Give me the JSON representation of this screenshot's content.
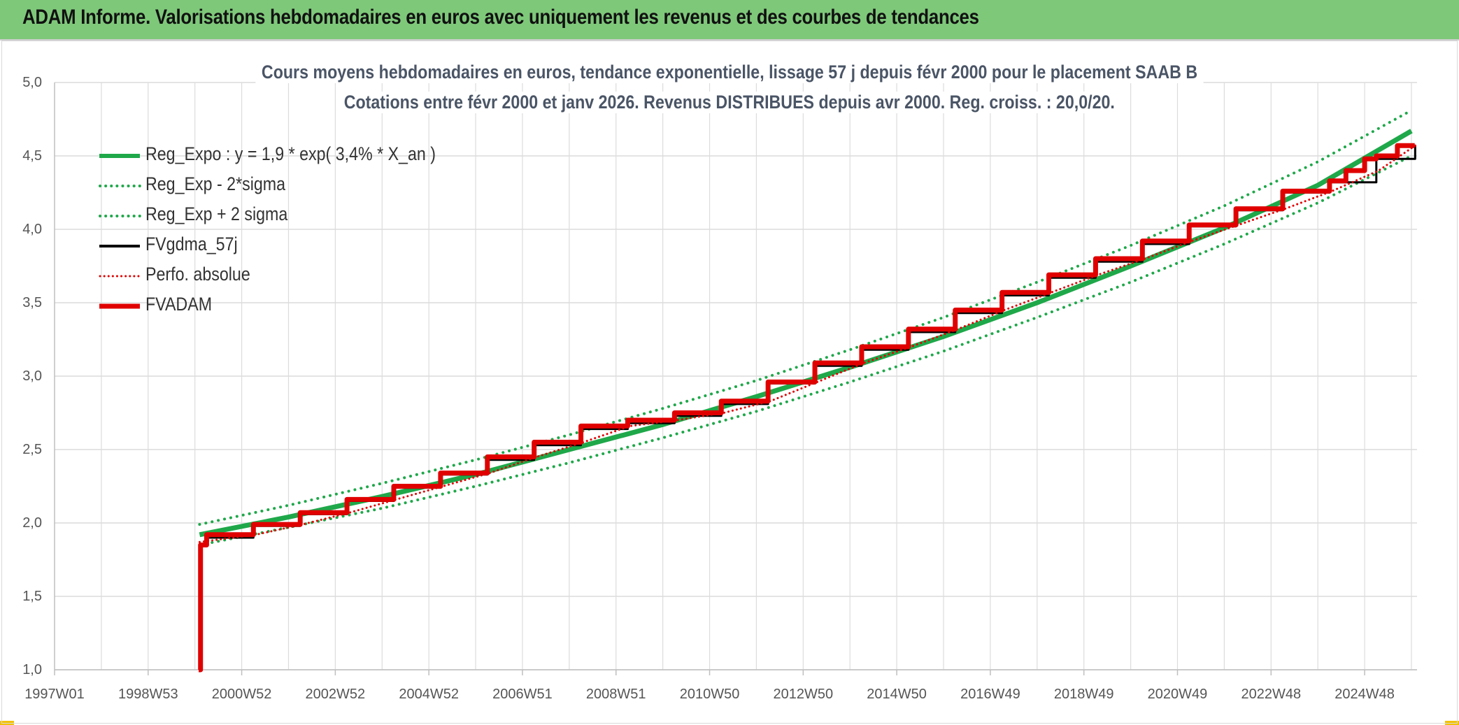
{
  "header": {
    "title": "ADAM Informe. Valorisations hebdomadaires en euros avec uniquement les revenus et des courbes de tendances"
  },
  "colors": {
    "header_bg": "#7ec87a",
    "trend": "#1fa84a",
    "band": "#1fa84a",
    "smooth": "#000000",
    "perf": "#e00000",
    "fvadam": "#e00000",
    "grid": "#dcdcdc",
    "corner": "#f2c200"
  },
  "chart_data": {
    "type": "line",
    "title": "Cours moyens hebdomadaires en euros, tendance exponentielle, lissage 57 j depuis févr 2000 pour le placement SAAB B",
    "subtitle": "Cotations entre févr 2000 et janv 2026. Revenus DISTRIBUES depuis avr 2000. Reg. croiss. : 20,0/20.",
    "xlabel": "",
    "ylabel": "",
    "ylim": [
      1.0,
      5.0
    ],
    "xlim": [
      "1997W01",
      "2026W06"
    ],
    "grid": true,
    "legend_position": "top-left",
    "y_ticks": [
      "1,0",
      "1,5",
      "2,0",
      "2,5",
      "3,0",
      "3,5",
      "4,0",
      "4,5",
      "5,0"
    ],
    "x_tick_labels": [
      "1997W01",
      "1998W53",
      "2000W52",
      "2002W52",
      "2004W52",
      "2006W51",
      "2008W51",
      "2010W50",
      "2012W50",
      "2014W50",
      "2016W49",
      "2018W49",
      "2020W49",
      "2022W48",
      "2024W48"
    ],
    "x_tick_years": [
      1997.0,
      1999.0,
      2001.0,
      2003.0,
      2005.0,
      2007.0,
      2009.0,
      2011.0,
      2013.0,
      2015.0,
      2017.0,
      2019.0,
      2021.0,
      2023.0,
      2025.0
    ],
    "series": [
      {
        "name": "Reg_Expo : y = 1,9 * exp( 3,4% *  X_an )",
        "style": "solid-thick",
        "color": "#1fa84a",
        "x": [
          2000.1,
          2002.0,
          2004.0,
          2006.0,
          2008.0,
          2010.0,
          2012.0,
          2014.0,
          2016.0,
          2018.0,
          2020.0,
          2022.0,
          2024.0,
          2026.0
        ],
        "y": [
          1.92,
          2.04,
          2.18,
          2.33,
          2.5,
          2.67,
          2.86,
          3.06,
          3.27,
          3.5,
          3.75,
          4.01,
          4.3,
          4.67
        ]
      },
      {
        "name": "Reg_Exp - 2*sigma",
        "style": "dotted",
        "color": "#1fa84a",
        "x": [
          2000.1,
          2002.0,
          2004.0,
          2006.0,
          2008.0,
          2010.0,
          2012.0,
          2014.0,
          2016.0,
          2018.0,
          2020.0,
          2022.0,
          2024.0,
          2026.0
        ],
        "y": [
          1.85,
          1.97,
          2.1,
          2.25,
          2.41,
          2.58,
          2.76,
          2.96,
          3.17,
          3.4,
          3.64,
          3.9,
          4.18,
          4.5
        ]
      },
      {
        "name": "Reg_Exp + 2 sigma",
        "style": "dotted",
        "color": "#1fa84a",
        "x": [
          2000.1,
          2002.0,
          2004.0,
          2006.0,
          2008.0,
          2010.0,
          2012.0,
          2014.0,
          2016.0,
          2018.0,
          2020.0,
          2022.0,
          2024.0,
          2026.0
        ],
        "y": [
          1.99,
          2.12,
          2.27,
          2.43,
          2.6,
          2.78,
          2.97,
          3.18,
          3.4,
          3.64,
          3.89,
          4.16,
          4.46,
          4.81
        ]
      },
      {
        "name": "FVgdma_57j",
        "style": "solid",
        "color": "#000000",
        "x": [
          2000.08,
          2000.25,
          2001.25,
          2002.25,
          2003.25,
          2004.25,
          2005.25,
          2006.25,
          2007.25,
          2008.25,
          2009.25,
          2010.25,
          2011.25,
          2012.25,
          2013.25,
          2014.25,
          2015.25,
          2016.25,
          2017.25,
          2018.25,
          2019.25,
          2020.25,
          2021.25,
          2022.25,
          2023.25,
          2024.25,
          2025.25,
          2026.08
        ],
        "y": [
          1.85,
          1.9,
          1.98,
          2.06,
          2.15,
          2.24,
          2.33,
          2.43,
          2.53,
          2.64,
          2.68,
          2.73,
          2.81,
          2.95,
          3.07,
          3.18,
          3.3,
          3.43,
          3.55,
          3.67,
          3.78,
          3.9,
          4.02,
          4.13,
          4.25,
          4.32,
          4.48,
          4.57
        ]
      },
      {
        "name": "Perfo. absolue",
        "style": "dotted",
        "color": "#e00000",
        "x": [
          2000.1,
          2001.3,
          2002.3,
          2003.3,
          2004.3,
          2005.3,
          2006.3,
          2007.3,
          2008.3,
          2009.3,
          2010.3,
          2011.3,
          2012.3,
          2013.3,
          2014.3,
          2015.3,
          2016.3,
          2017.3,
          2018.3,
          2019.3,
          2020.3,
          2021.3,
          2022.3,
          2023.3,
          2024.3,
          2025.3,
          2026.08
        ],
        "y": [
          1.87,
          1.92,
          1.99,
          2.07,
          2.16,
          2.25,
          2.34,
          2.45,
          2.55,
          2.66,
          2.7,
          2.75,
          2.83,
          2.96,
          3.09,
          3.2,
          3.32,
          3.45,
          3.57,
          3.69,
          3.8,
          3.92,
          4.03,
          4.14,
          4.26,
          4.4,
          4.57
        ]
      },
      {
        "name": "FVADAM",
        "style": "step-thick",
        "color": "#e00000",
        "x": [
          2000.08,
          2000.12,
          2000.25,
          2001.25,
          2002.25,
          2003.25,
          2004.25,
          2005.25,
          2006.25,
          2007.25,
          2008.25,
          2009.25,
          2010.25,
          2011.25,
          2012.25,
          2013.25,
          2014.25,
          2015.25,
          2016.25,
          2017.25,
          2018.25,
          2019.25,
          2020.25,
          2021.25,
          2022.25,
          2023.25,
          2024.25,
          2024.6,
          2025.0,
          2025.25,
          2025.7
        ],
        "y": [
          1.0,
          1.85,
          1.92,
          1.99,
          2.07,
          2.16,
          2.25,
          2.34,
          2.45,
          2.55,
          2.66,
          2.7,
          2.75,
          2.83,
          2.96,
          3.09,
          3.2,
          3.32,
          3.45,
          3.57,
          3.69,
          3.8,
          3.92,
          4.03,
          4.14,
          4.26,
          4.33,
          4.4,
          4.48,
          4.5,
          4.57
        ]
      }
    ]
  }
}
